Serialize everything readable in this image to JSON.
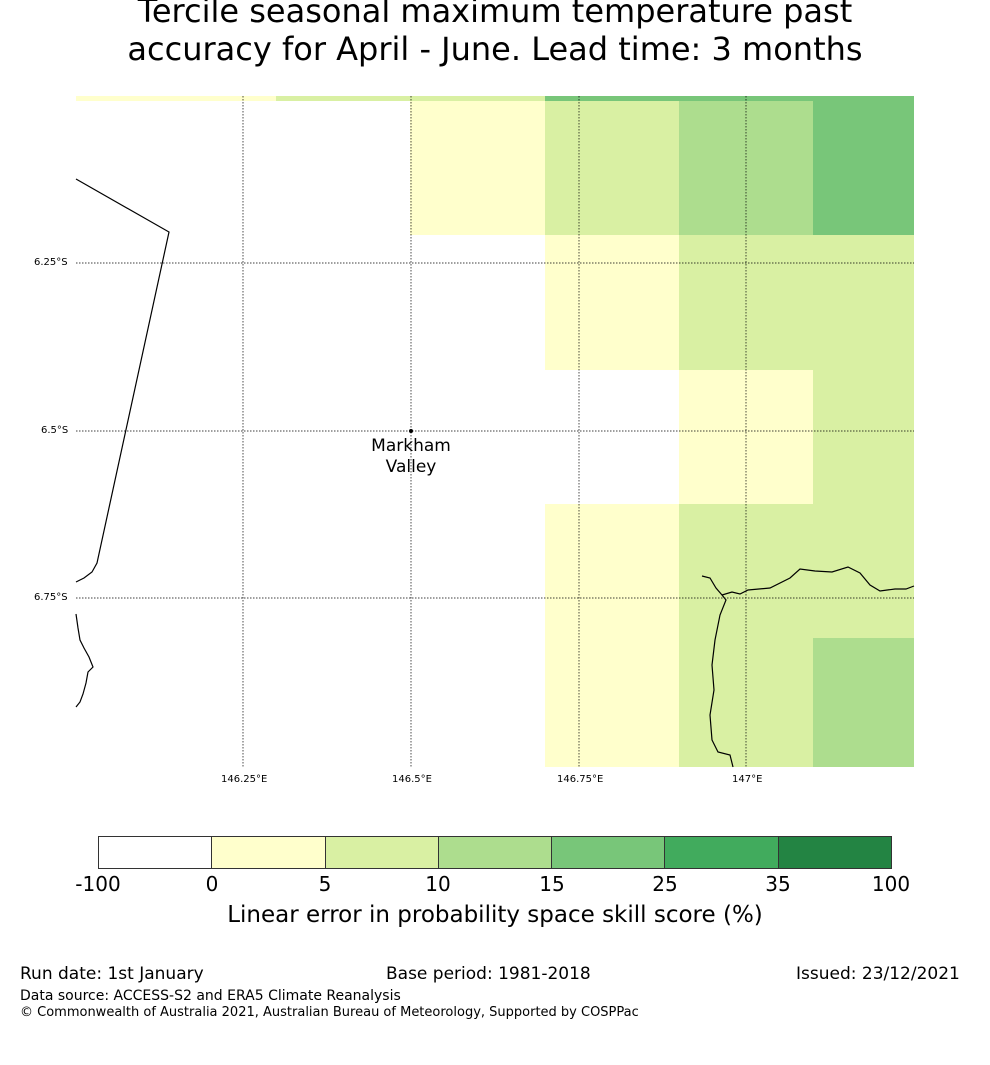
{
  "title": {
    "line1": "Tercile seasonal maximum temperature past",
    "line2": "accuracy for April - June. Lead time: 3 months"
  },
  "map": {
    "location_name_line1": "Markham",
    "location_name_line2": "Valley",
    "lat_labels": [
      "6.25°S",
      "6.5°S",
      "6.75°S"
    ],
    "lon_labels": [
      "146.25°E",
      "146.5°E",
      "146.75°E",
      "147°E"
    ]
  },
  "colorbar": {
    "label": "Linear error in probability space skill score (%)",
    "ticks": [
      "-100",
      "0",
      "5",
      "10",
      "15",
      "25",
      "35",
      "100"
    ],
    "colors": [
      "#ffffff",
      "#ffffcc",
      "#d9f0a3",
      "#addd8e",
      "#78c679",
      "#41ab5d",
      "#238443"
    ]
  },
  "footer": {
    "run_date": "Run date: 1st January",
    "base_period": "Base period: 1981-2018",
    "issued": "Issued: 23/12/2021",
    "data_source": "Data source: ACCESS-S2 and ERA5 Climate Reanalysis",
    "copyright": "© Commonwealth of Australia 2021, Australian Bureau of Meteorology, Supported by COSPPac"
  }
}
